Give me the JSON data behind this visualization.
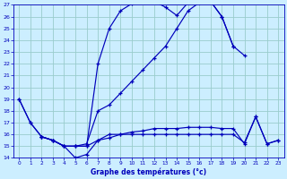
{
  "xlabel": "Graphe des températures (°c)",
  "bg_color": "#cceeff",
  "line_color": "#0000bb",
  "grid_color": "#99cccc",
  "line1_x": [
    0,
    1,
    2,
    3,
    4,
    5,
    6,
    7,
    8,
    9,
    10,
    11,
    12,
    13,
    14,
    15,
    16,
    17,
    18,
    19,
    20,
    21,
    22,
    23
  ],
  "line1_y": [
    19,
    17,
    15.8,
    15.5,
    15,
    14,
    14.3,
    15.5,
    16,
    16,
    16,
    16,
    16,
    16,
    16,
    16,
    16,
    16,
    16,
    16,
    15.3,
    17.5,
    15.2,
    15.5
  ],
  "line2_x": [
    0,
    1,
    2,
    3,
    4,
    5,
    6,
    7,
    8,
    9,
    10,
    11,
    12,
    13,
    14,
    15,
    16,
    17,
    18,
    19,
    20
  ],
  "line2_y": [
    19,
    17,
    15.8,
    15.5,
    15,
    15,
    15.2,
    18,
    18.5,
    19.5,
    20.5,
    21.5,
    22.5,
    23.5,
    25.0,
    26.5,
    27.2,
    27.3,
    26.0,
    23.5,
    22.7
  ],
  "line3_x": [
    2,
    3,
    4,
    5,
    6,
    7,
    8,
    9,
    10,
    11,
    12,
    13,
    14,
    15,
    16,
    17,
    18,
    19
  ],
  "line3_y": [
    15.8,
    15.5,
    15.0,
    15.0,
    15.0,
    22.0,
    25.0,
    26.5,
    27.1,
    27.3,
    27.3,
    26.8,
    26.1,
    27.2,
    27.2,
    27.3,
    26.0,
    23.5
  ],
  "line4_x": [
    2,
    3,
    4,
    5,
    6,
    7,
    8,
    9,
    10,
    11,
    12,
    13,
    14,
    15,
    16,
    17,
    18,
    19,
    20,
    21,
    22,
    23
  ],
  "line4_y": [
    15.8,
    15.5,
    15.0,
    15.0,
    15.0,
    15.5,
    15.7,
    16.0,
    16.2,
    16.3,
    16.5,
    16.5,
    16.5,
    16.6,
    16.6,
    16.6,
    16.5,
    16.5,
    15.2,
    17.5,
    15.2,
    15.5
  ],
  "ylim": [
    14,
    27
  ],
  "xlim": [
    -0.5,
    23.5
  ],
  "yticks": [
    14,
    15,
    16,
    17,
    18,
    19,
    20,
    21,
    22,
    23,
    24,
    25,
    26,
    27
  ],
  "xticks": [
    0,
    1,
    2,
    3,
    4,
    5,
    6,
    7,
    8,
    9,
    10,
    11,
    12,
    13,
    14,
    15,
    16,
    17,
    18,
    19,
    20,
    21,
    22,
    23
  ]
}
